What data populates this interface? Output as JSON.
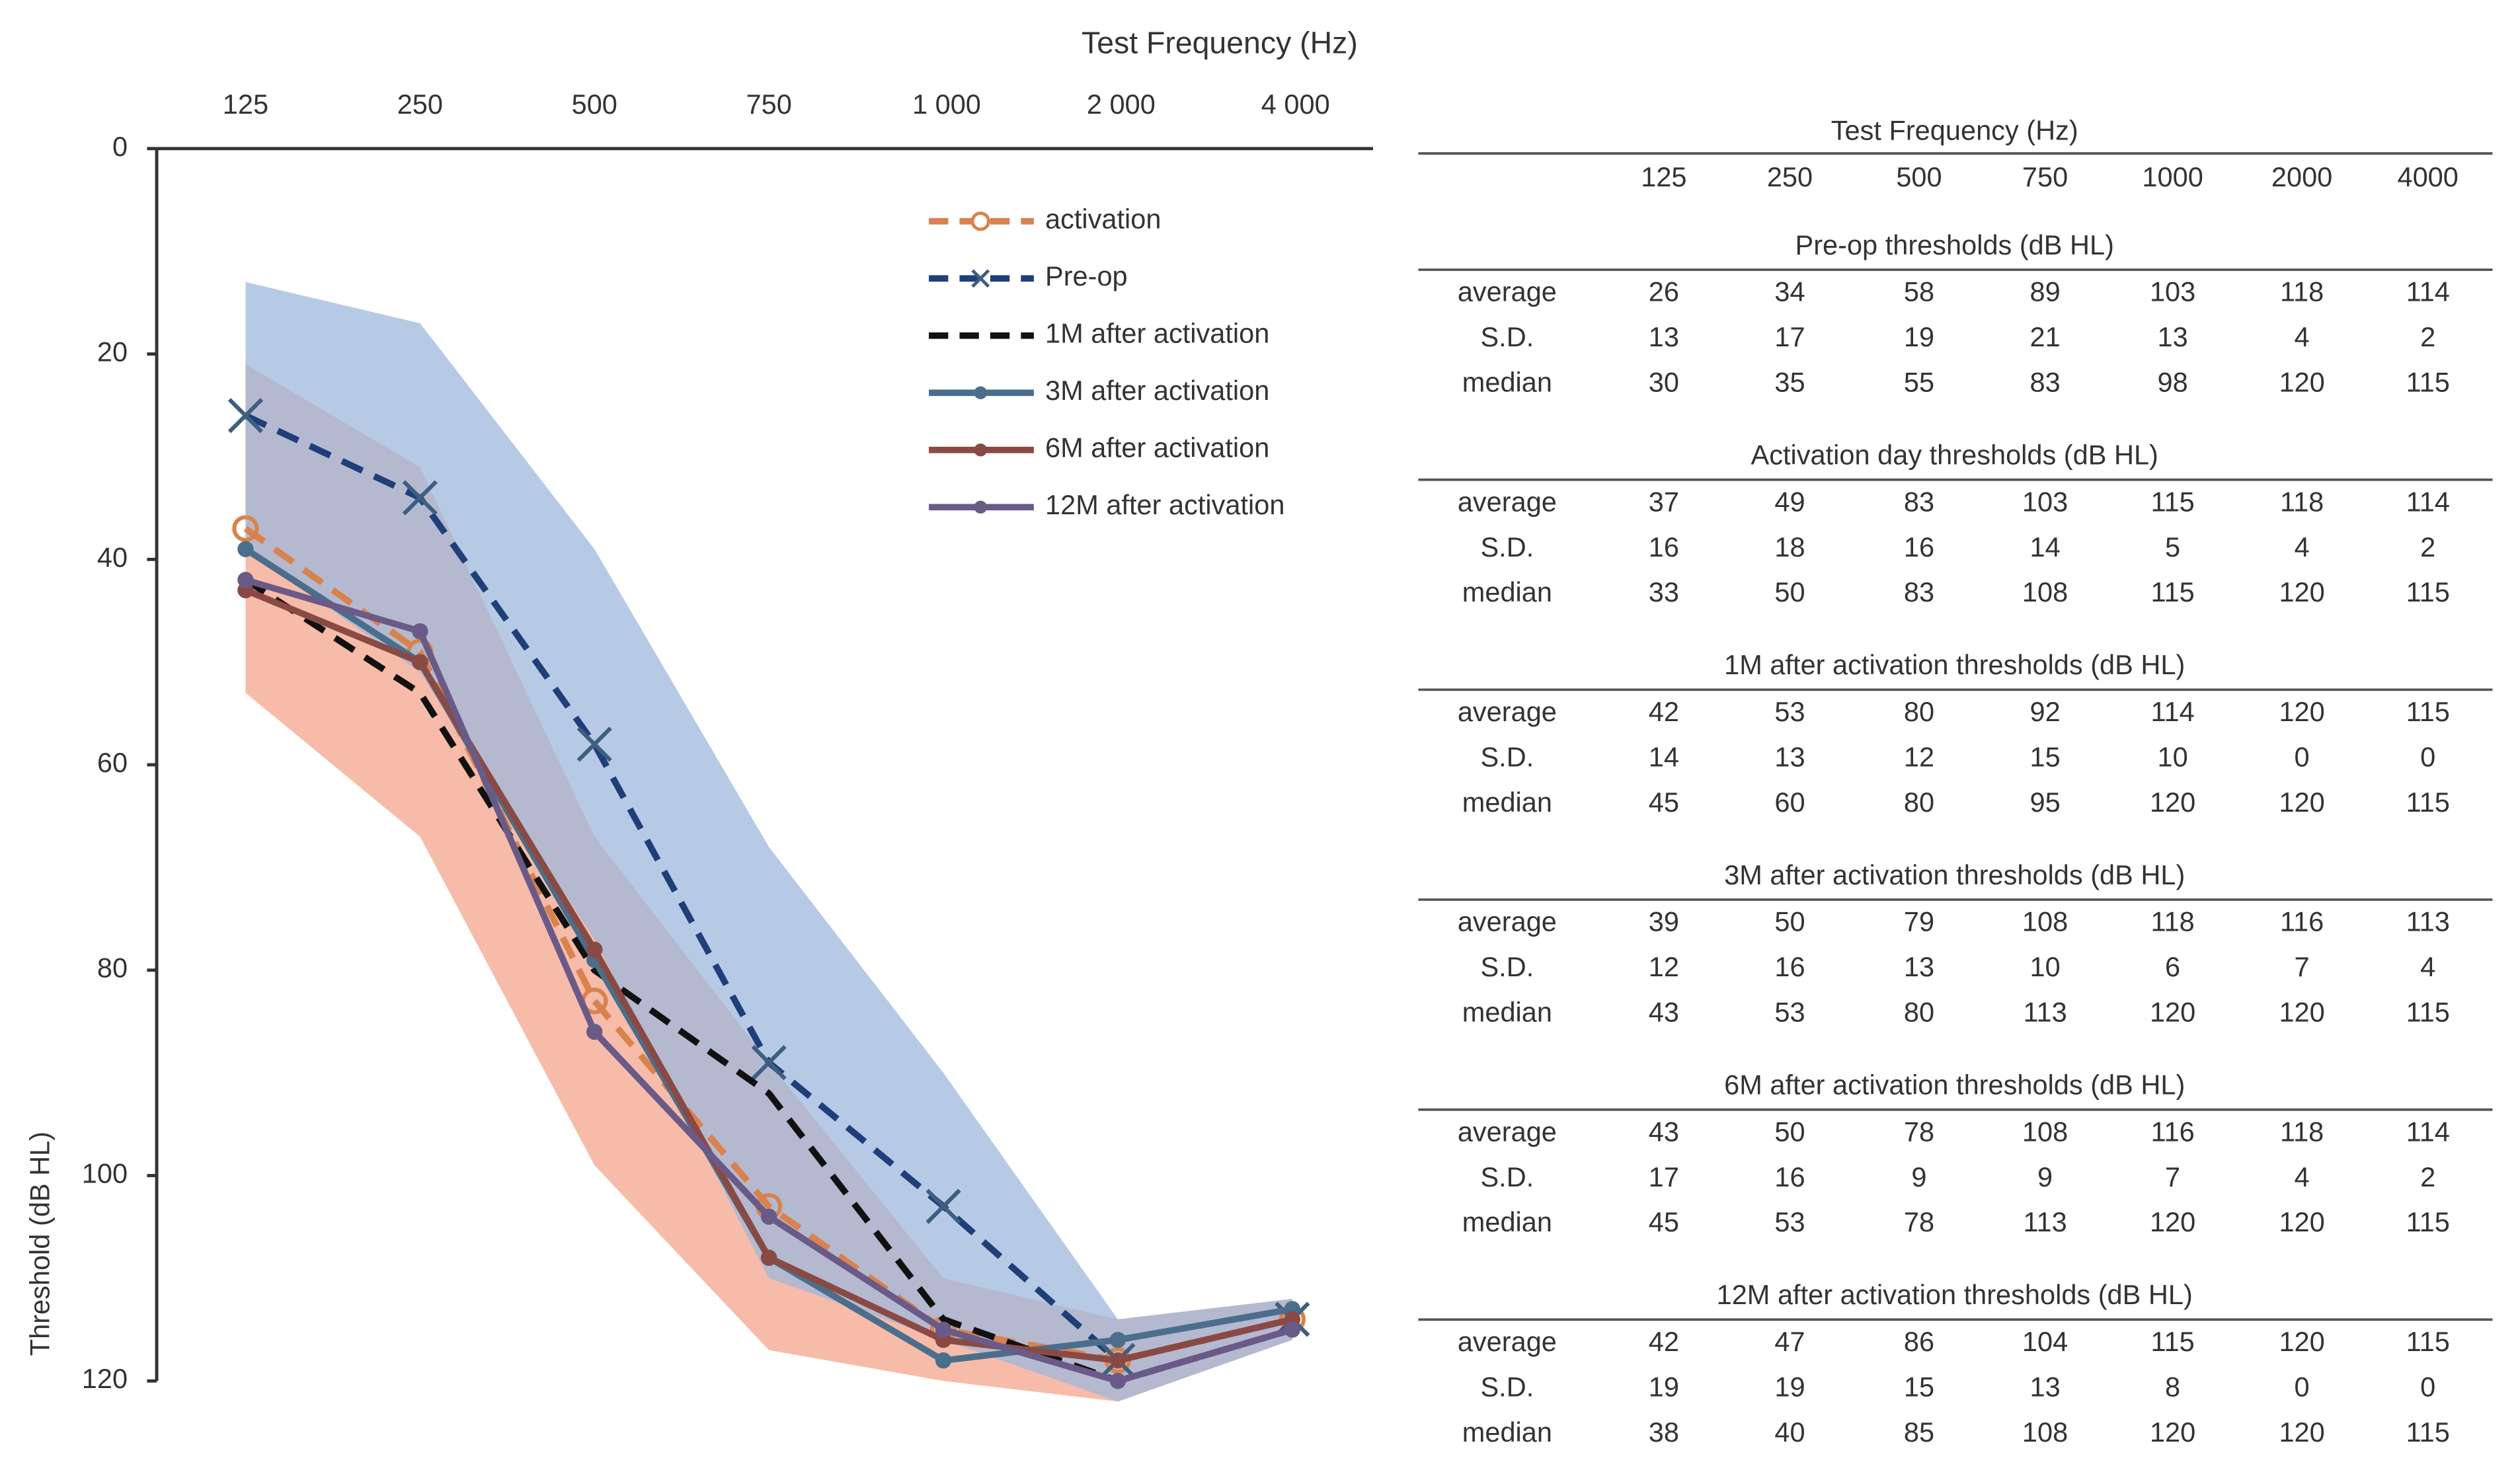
{
  "chart_data": {
    "type": "line",
    "title": "Test Frequency (Hz)",
    "y_label": "Threshold (dB HL)",
    "categories": [
      "125",
      "250",
      "500",
      "750",
      "1 000",
      "2 000",
      "4 000"
    ],
    "ylim": [
      0,
      120
    ],
    "yticks": [
      0,
      20,
      40,
      60,
      80,
      100,
      120
    ],
    "y_reversed": true,
    "x_axis_position": "top",
    "series": [
      {
        "name": "activation",
        "color": "#d9824c",
        "line_style": "dashed",
        "marker": "circle",
        "values": [
          37,
          49,
          83,
          103,
          115,
          118,
          114
        ]
      },
      {
        "name": "Pre-op",
        "color": "#1f3f7a",
        "line_style": "dashed",
        "marker": "x",
        "values": [
          26,
          34,
          58,
          89,
          103,
          118,
          114
        ]
      },
      {
        "name": "1M after activation",
        "color": "#111111",
        "line_style": "dashed",
        "marker": "none",
        "values": [
          42,
          53,
          80,
          92,
          114,
          120,
          115
        ]
      },
      {
        "name": "3M after activation",
        "color": "#4b6e8c",
        "line_style": "solid",
        "marker": "dot",
        "values": [
          39,
          50,
          79,
          108,
          118,
          116,
          113
        ]
      },
      {
        "name": "6M after activation",
        "color": "#8a4a44",
        "line_style": "solid",
        "marker": "dot",
        "values": [
          43,
          50,
          78,
          108,
          116,
          118,
          114
        ]
      },
      {
        "name": "12M after activation",
        "color": "#6a5a88",
        "line_style": "solid",
        "marker": "dot",
        "values": [
          42,
          47,
          86,
          104,
          115,
          120,
          115
        ]
      }
    ]
  },
  "table": {
    "title": "Test Frequency (Hz)",
    "columns": [
      "125",
      "250",
      "500",
      "750",
      "1000",
      "2000",
      "4000"
    ],
    "sections": [
      {
        "title": "Pre-op thresholds (dB HL)",
        "rows": [
          {
            "label": "average",
            "values": [
              26,
              34,
              58,
              89,
              103,
              118,
              114
            ]
          },
          {
            "label": "S.D.",
            "values": [
              13,
              17,
              19,
              21,
              13,
              4,
              2
            ]
          },
          {
            "label": "median",
            "values": [
              30,
              35,
              55,
              83,
              98,
              120,
              115
            ]
          }
        ]
      },
      {
        "title": "Activation day thresholds (dB HL)",
        "rows": [
          {
            "label": "average",
            "values": [
              37,
              49,
              83,
              103,
              115,
              118,
              114
            ]
          },
          {
            "label": "S.D.",
            "values": [
              16,
              18,
              16,
              14,
              5,
              4,
              2
            ]
          },
          {
            "label": "median",
            "values": [
              33,
              50,
              83,
              108,
              115,
              120,
              115
            ]
          }
        ]
      },
      {
        "title": "1M after activation thresholds (dB HL)",
        "rows": [
          {
            "label": "average",
            "values": [
              42,
              53,
              80,
              92,
              114,
              120,
              115
            ]
          },
          {
            "label": "S.D.",
            "values": [
              14,
              13,
              12,
              15,
              10,
              0,
              0
            ]
          },
          {
            "label": "median",
            "values": [
              45,
              60,
              80,
              95,
              120,
              120,
              115
            ]
          }
        ]
      },
      {
        "title": "3M after activation thresholds (dB HL)",
        "rows": [
          {
            "label": "average",
            "values": [
              39,
              50,
              79,
              108,
              118,
              116,
              113
            ]
          },
          {
            "label": "S.D.",
            "values": [
              12,
              16,
              13,
              10,
              6,
              7,
              4
            ]
          },
          {
            "label": "median",
            "values": [
              43,
              53,
              80,
              113,
              120,
              120,
              115
            ]
          }
        ]
      },
      {
        "title": "6M after activation thresholds (dB HL)",
        "rows": [
          {
            "label": "average",
            "values": [
              43,
              50,
              78,
              108,
              116,
              118,
              114
            ]
          },
          {
            "label": "S.D.",
            "values": [
              17,
              16,
              9,
              9,
              7,
              4,
              2
            ]
          },
          {
            "label": "median",
            "values": [
              45,
              53,
              78,
              113,
              120,
              120,
              115
            ]
          }
        ]
      },
      {
        "title": "12M after activation thresholds (dB HL)",
        "rows": [
          {
            "label": "average",
            "values": [
              42,
              47,
              86,
              104,
              115,
              120,
              115
            ]
          },
          {
            "label": "S.D.",
            "values": [
              19,
              19,
              15,
              13,
              8,
              0,
              0
            ]
          },
          {
            "label": "median",
            "values": [
              38,
              40,
              85,
              108,
              120,
              120,
              115
            ]
          }
        ]
      }
    ]
  }
}
